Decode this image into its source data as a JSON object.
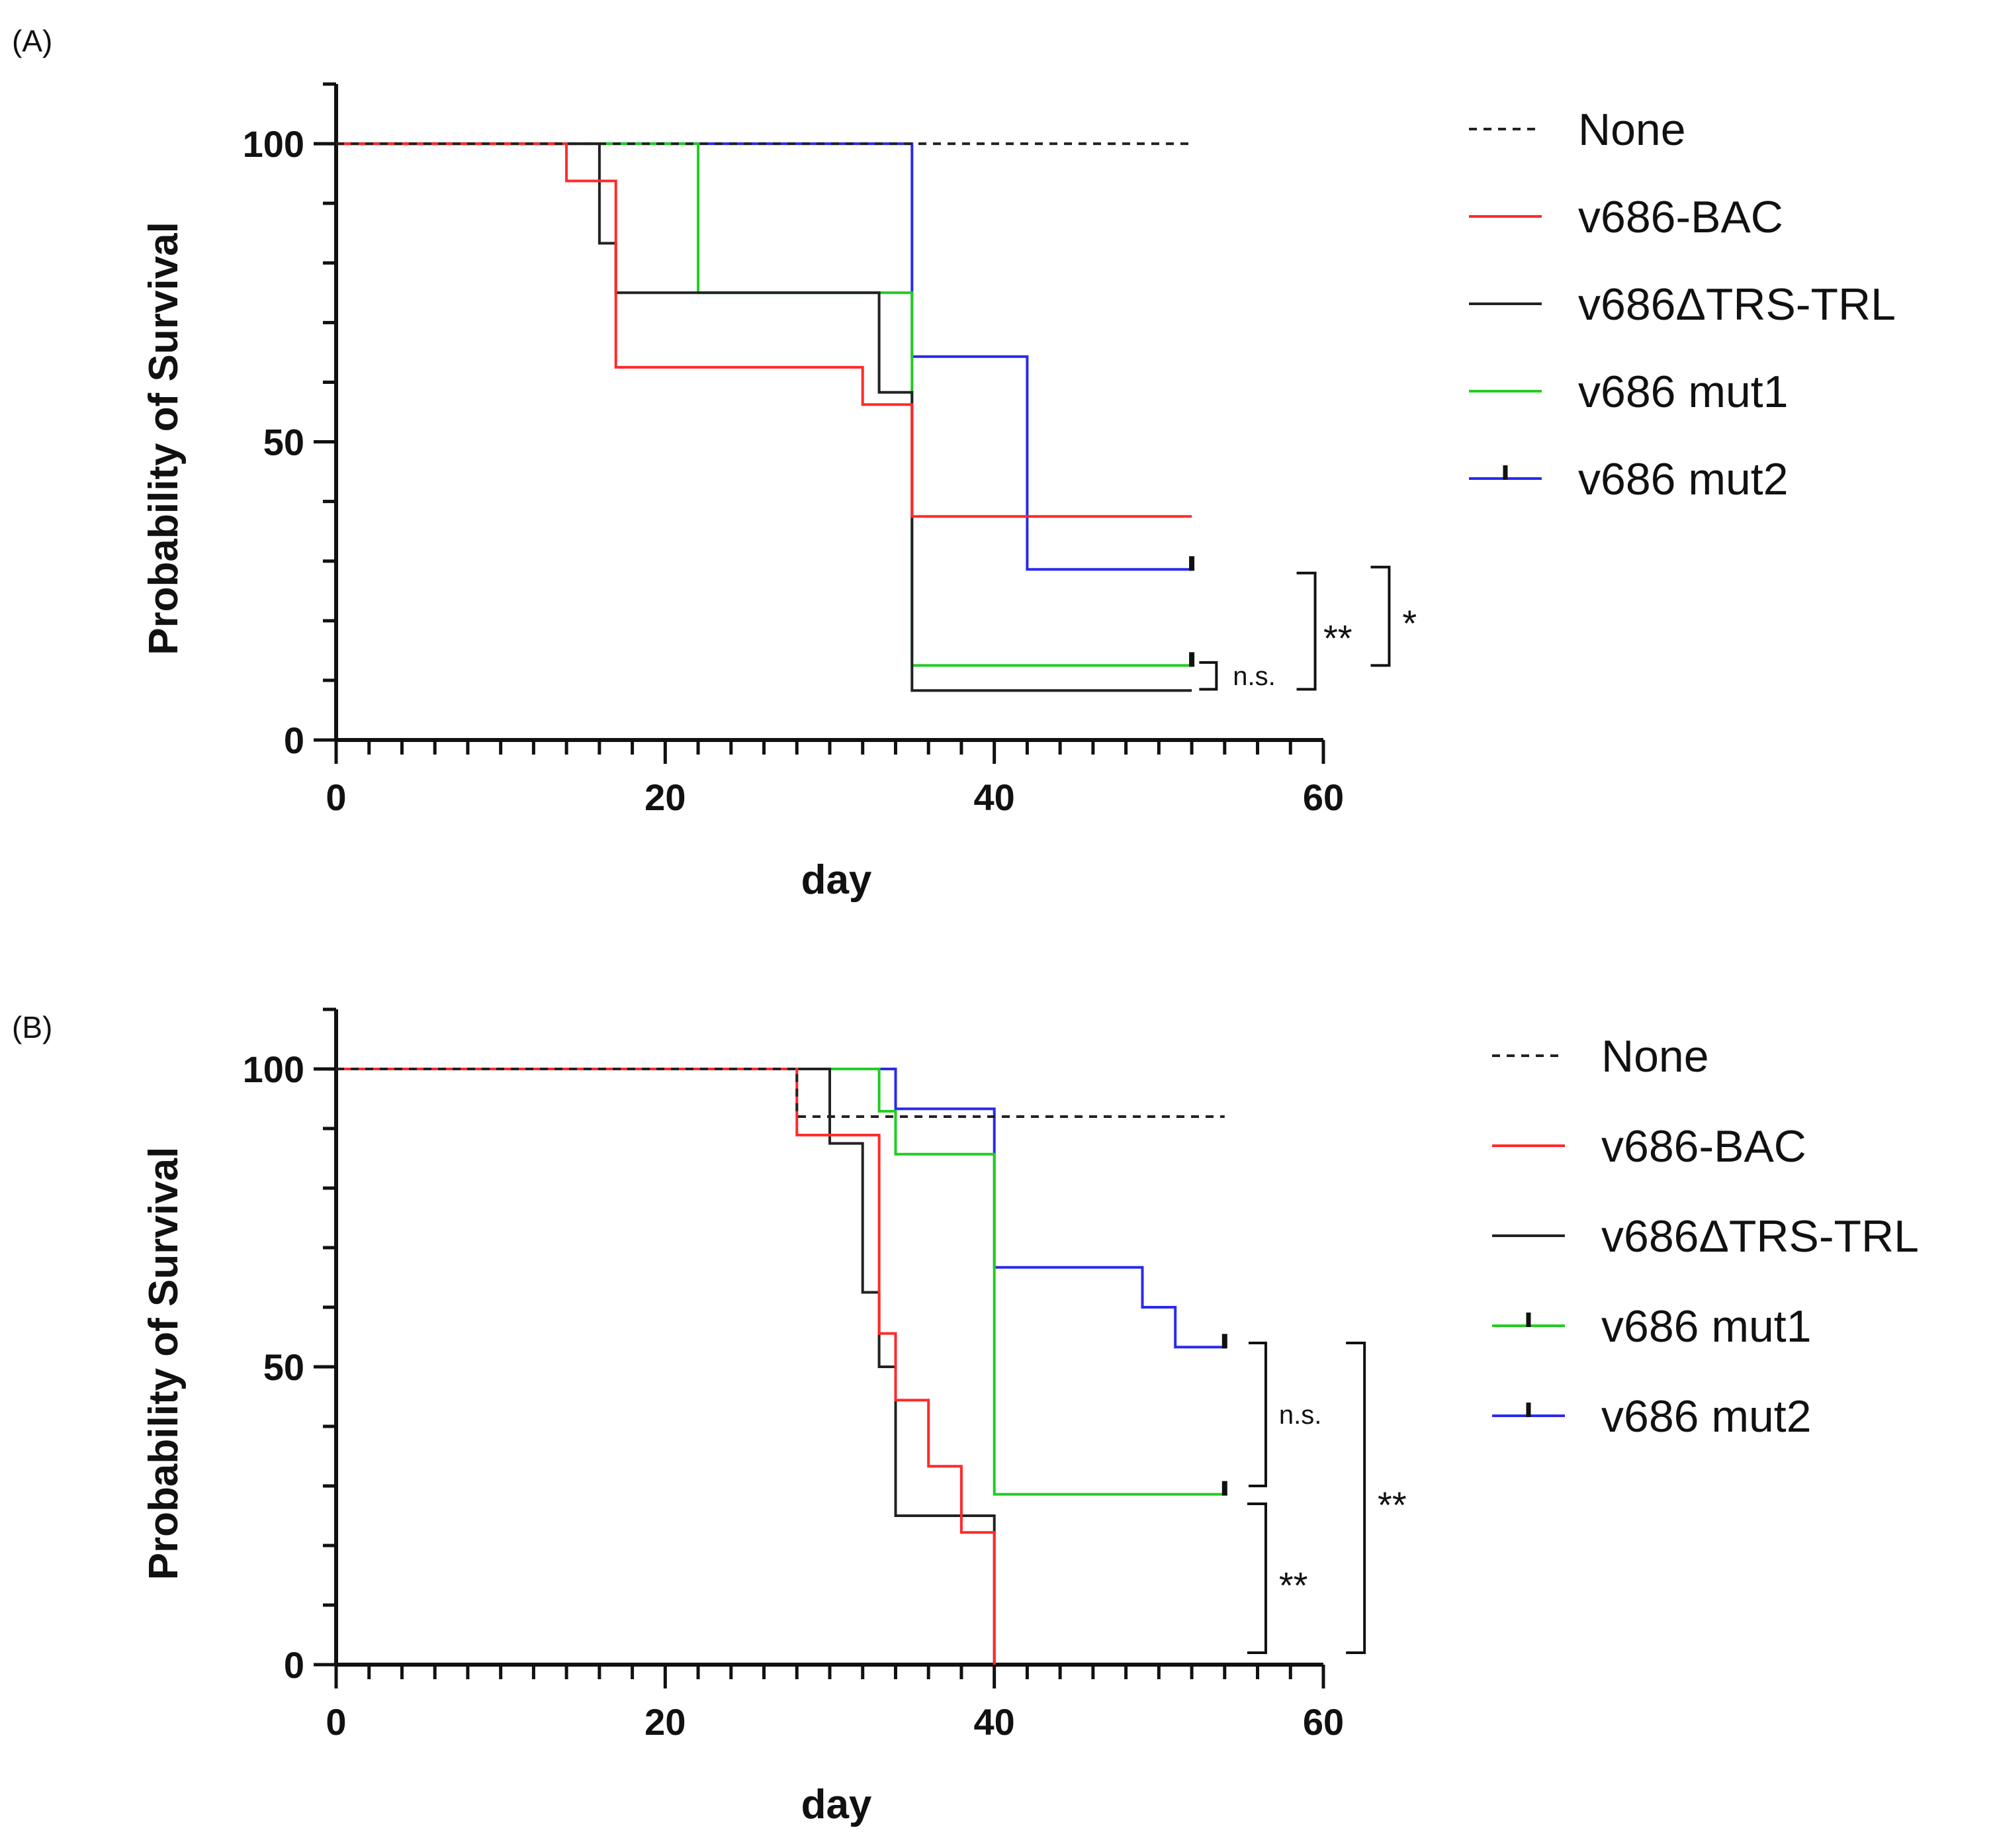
{
  "chart_data": [
    {
      "type": "line",
      "panel_label": "(A)",
      "xlabel": "day",
      "ylabel": "Probability of Survival",
      "xlim": [
        0,
        60
      ],
      "ylim": [
        0,
        110
      ],
      "xticks": [
        0,
        20,
        40,
        60
      ],
      "yticks": [
        0,
        50,
        100
      ],
      "x_minor_step": 2,
      "y_minor_step": 10,
      "step": true,
      "legend_position": "right",
      "series": [
        {
          "name": "None",
          "color": "#222222",
          "dashed": true,
          "censor_tick": false,
          "points": [
            [
              0,
              100
            ],
            [
              52,
              100
            ]
          ]
        },
        {
          "name": "v686-BAC",
          "color": "#ff2a2a",
          "dashed": false,
          "censor_tick": false,
          "points": [
            [
              0,
              100
            ],
            [
              14,
              100
            ],
            [
              14,
              93.75
            ],
            [
              17,
              93.75
            ],
            [
              17,
              62.5
            ],
            [
              32,
              62.5
            ],
            [
              32,
              56.25
            ],
            [
              35,
              56.25
            ],
            [
              35,
              37.5
            ],
            [
              52,
              37.5
            ]
          ]
        },
        {
          "name": "v686ΔTRS-TRL",
          "color": "#222222",
          "dashed": false,
          "censor_tick": false,
          "points": [
            [
              0,
              100
            ],
            [
              16,
              100
            ],
            [
              16,
              83.3
            ],
            [
              17,
              83.3
            ],
            [
              17,
              75
            ],
            [
              33,
              75
            ],
            [
              33,
              58.3
            ],
            [
              35,
              58.3
            ],
            [
              35,
              8.3
            ],
            [
              52,
              8.3
            ]
          ]
        },
        {
          "name": "v686 mut1",
          "color": "#22cc22",
          "dashed": false,
          "censor_tick": false,
          "points": [
            [
              0,
              100
            ],
            [
              22,
              100
            ],
            [
              22,
              75
            ],
            [
              35,
              75
            ],
            [
              35,
              12.5
            ],
            [
              52,
              12.5
            ]
          ]
        },
        {
          "name": "v686 mut2",
          "color": "#2a2aee",
          "dashed": false,
          "censor_tick": true,
          "points": [
            [
              0,
              100
            ],
            [
              35,
              100
            ],
            [
              35,
              64.3
            ],
            [
              42,
              64.3
            ],
            [
              42,
              28.6
            ],
            [
              52,
              28.6
            ]
          ]
        }
      ],
      "censor_marks": [
        {
          "x": 52,
          "y": 28.6,
          "color": "#111111"
        },
        {
          "x": 52,
          "y": 12.5,
          "color": "#111111"
        }
      ],
      "annotations": [
        {
          "text": "n.s.",
          "kind": "ns",
          "x": 53.5,
          "y1": 8.5,
          "y2": 13,
          "label_x": 54.5
        },
        {
          "text": "**",
          "kind": "sig",
          "x": 59.5,
          "y1": 8.5,
          "y2": 28,
          "label_x": 60
        },
        {
          "text": "*",
          "kind": "sig",
          "x": 64,
          "y1": 12.5,
          "y2": 29,
          "label_x": 64.8
        }
      ]
    },
    {
      "type": "line",
      "panel_label": "(B)",
      "xlabel": "day",
      "ylabel": "Probability of Survival",
      "xlim": [
        0,
        60
      ],
      "ylim": [
        0,
        110
      ],
      "xticks": [
        0,
        20,
        40,
        60
      ],
      "yticks": [
        0,
        50,
        100
      ],
      "x_minor_step": 2,
      "y_minor_step": 10,
      "step": true,
      "legend_position": "right",
      "series": [
        {
          "name": "None",
          "color": "#222222",
          "dashed": true,
          "censor_tick": false,
          "points": [
            [
              0,
              100
            ],
            [
              28,
              100
            ],
            [
              28,
              92
            ],
            [
              54,
              92
            ]
          ]
        },
        {
          "name": "v686-BAC",
          "color": "#ff2a2a",
          "dashed": false,
          "censor_tick": false,
          "points": [
            [
              0,
              100
            ],
            [
              28,
              100
            ],
            [
              28,
              88.9
            ],
            [
              33,
              88.9
            ],
            [
              33,
              55.6
            ],
            [
              34,
              55.6
            ],
            [
              34,
              44.4
            ],
            [
              36,
              44.4
            ],
            [
              36,
              33.3
            ],
            [
              38,
              33.3
            ],
            [
              38,
              22.2
            ],
            [
              40,
              22.2
            ],
            [
              40,
              0
            ]
          ]
        },
        {
          "name": "v686ΔTRS-TRL",
          "color": "#222222",
          "dashed": false,
          "censor_tick": false,
          "points": [
            [
              0,
              100
            ],
            [
              30,
              100
            ],
            [
              30,
              87.5
            ],
            [
              32,
              87.5
            ],
            [
              32,
              62.5
            ],
            [
              33,
              62.5
            ],
            [
              33,
              50
            ],
            [
              34,
              50
            ],
            [
              34,
              25
            ],
            [
              40,
              25
            ],
            [
              40,
              0
            ]
          ]
        },
        {
          "name": "v686 mut1",
          "color": "#22cc22",
          "dashed": false,
          "censor_tick": true,
          "points": [
            [
              0,
              100
            ],
            [
              33,
              100
            ],
            [
              33,
              92.9
            ],
            [
              34,
              92.9
            ],
            [
              34,
              85.7
            ],
            [
              40,
              85.7
            ],
            [
              40,
              28.6
            ],
            [
              54,
              28.6
            ]
          ]
        },
        {
          "name": "v686 mut2",
          "color": "#2a2aee",
          "dashed": false,
          "censor_tick": true,
          "points": [
            [
              0,
              100
            ],
            [
              34,
              100
            ],
            [
              34,
              93.3
            ],
            [
              40,
              93.3
            ],
            [
              40,
              66.7
            ],
            [
              49,
              66.7
            ],
            [
              49,
              60
            ],
            [
              51,
              60
            ],
            [
              51,
              53.3
            ],
            [
              54,
              53.3
            ]
          ]
        }
      ],
      "censor_marks": [
        {
          "x": 54,
          "y": 53.3,
          "color": "#111111"
        },
        {
          "x": 54,
          "y": 28.6,
          "color": "#111111"
        }
      ],
      "annotations": [
        {
          "text": "n.s.",
          "kind": "ns",
          "x": 56.5,
          "y1": 30,
          "y2": 54,
          "label_x": 57.3
        },
        {
          "text": "**",
          "kind": "sig",
          "x": 56.5,
          "y1": 2,
          "y2": 27,
          "label_x": 57.3
        },
        {
          "text": "**",
          "kind": "sig",
          "x": 62.5,
          "y1": 2,
          "y2": 54,
          "label_x": 63.3
        }
      ]
    }
  ]
}
